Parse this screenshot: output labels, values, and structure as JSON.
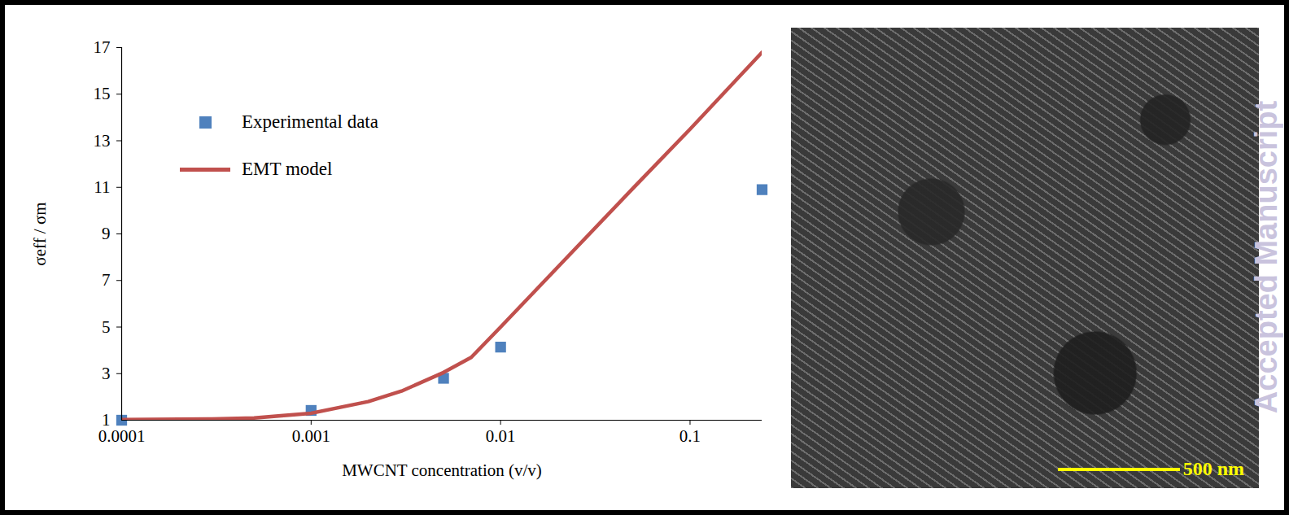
{
  "chart_data": {
    "type": "scatter",
    "x_label": "MWCNT concentration (v/v)",
    "y_label": "σeff / σm",
    "log": "x",
    "xlim": [
      0.0001,
      0.24
    ],
    "xticks": [
      0.0001,
      0.001,
      0.01,
      0.1
    ],
    "ylim": [
      1,
      17
    ],
    "yticks": [
      1,
      3,
      5,
      7,
      9,
      11,
      13,
      15,
      17
    ],
    "legend": "upper left",
    "series": [
      {
        "name": "Experimental data",
        "type": "scatter",
        "marker": "square",
        "color": "#4f81bd",
        "x": [
          0.0001,
          0.001,
          0.005,
          0.01,
          0.24
        ],
        "values": [
          1.0,
          1.42,
          2.8,
          4.14,
          10.9
        ]
      },
      {
        "name": "EMT model",
        "type": "line",
        "line_style": "solid",
        "color": "#c0504d",
        "x": [
          0.0001,
          0.0003,
          0.0005,
          0.001,
          0.002,
          0.003,
          0.005,
          0.007,
          0.01,
          0.02,
          0.05,
          0.1,
          0.24
        ],
        "values": [
          1.03,
          1.05,
          1.1,
          1.3,
          1.8,
          2.25,
          3.05,
          3.7,
          5.0,
          7.57,
          10.96,
          13.5,
          16.8
        ]
      }
    ]
  },
  "image": {
    "scale_bar": "500 nm"
  },
  "watermark": "Accepted Manuscript"
}
